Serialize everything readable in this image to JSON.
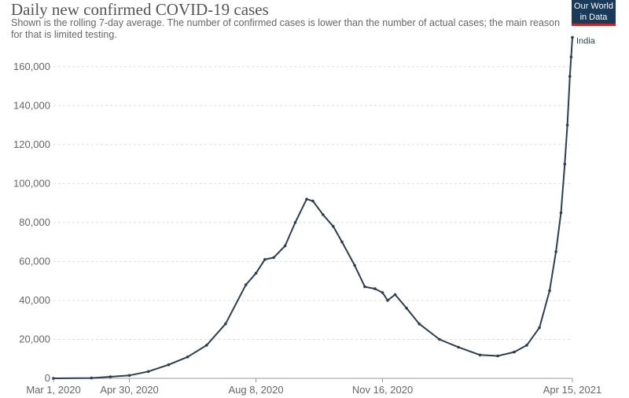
{
  "header": {
    "title": "Daily new confirmed COVID-19 cases",
    "subtitle": "Shown is the rolling 7-day average. The number of confirmed cases is lower than the number of actual cases; the main reason for that is limited testing.",
    "logo_line1": "Our World",
    "logo_line2": "in Data"
  },
  "colors": {
    "series": "#2c3e50",
    "grid": "#dddddd",
    "text": "#666666",
    "logo_bg": "#1a3a5c",
    "logo_accent": "#c0282d"
  },
  "chart_data": {
    "type": "line",
    "title": "Daily new confirmed COVID-19 cases",
    "xlabel": "",
    "ylabel": "",
    "ylim": [
      0,
      170000
    ],
    "xlim": [
      "2020-03-01",
      "2021-04-15"
    ],
    "yticks": [
      0,
      20000,
      40000,
      60000,
      80000,
      100000,
      120000,
      140000,
      160000
    ],
    "ytick_labels": [
      "0",
      "20,000",
      "40,000",
      "60,000",
      "80,000",
      "100,000",
      "120,000",
      "140,000",
      "160,000"
    ],
    "xticks": [
      "2020-03-01",
      "2020-04-30",
      "2020-08-08",
      "2020-11-16",
      "2021-04-15"
    ],
    "xtick_labels": [
      "Mar 1, 2020",
      "Apr 30, 2020",
      "Aug 8, 2020",
      "Nov 16, 2020",
      "Apr 15, 2021"
    ],
    "grid": "horizontal dashed",
    "series": [
      {
        "name": "India",
        "color": "#2c3e50",
        "points": [
          [
            "2020-03-01",
            0
          ],
          [
            "2020-03-31",
            150
          ],
          [
            "2020-04-15",
            800
          ],
          [
            "2020-04-30",
            1500
          ],
          [
            "2020-05-15",
            3500
          ],
          [
            "2020-05-31",
            7000
          ],
          [
            "2020-06-15",
            11000
          ],
          [
            "2020-06-30",
            17000
          ],
          [
            "2020-07-15",
            28000
          ],
          [
            "2020-07-31",
            48000
          ],
          [
            "2020-08-08",
            54000
          ],
          [
            "2020-08-15",
            61000
          ],
          [
            "2020-08-22",
            62000
          ],
          [
            "2020-08-31",
            68000
          ],
          [
            "2020-09-08",
            80000
          ],
          [
            "2020-09-17",
            92000
          ],
          [
            "2020-09-22",
            91000
          ],
          [
            "2020-09-30",
            84000
          ],
          [
            "2020-10-08",
            78000
          ],
          [
            "2020-10-15",
            70000
          ],
          [
            "2020-10-25",
            58000
          ],
          [
            "2020-11-02",
            47000
          ],
          [
            "2020-11-10",
            46000
          ],
          [
            "2020-11-16",
            44000
          ],
          [
            "2020-11-20",
            40000
          ],
          [
            "2020-11-26",
            43000
          ],
          [
            "2020-12-05",
            36000
          ],
          [
            "2020-12-15",
            28000
          ],
          [
            "2020-12-31",
            20000
          ],
          [
            "2021-01-15",
            16000
          ],
          [
            "2021-02-01",
            12000
          ],
          [
            "2021-02-15",
            11500
          ],
          [
            "2021-02-28",
            13500
          ],
          [
            "2021-03-10",
            17000
          ],
          [
            "2021-03-20",
            26000
          ],
          [
            "2021-03-28",
            45000
          ],
          [
            "2021-04-02",
            65000
          ],
          [
            "2021-04-06",
            85000
          ],
          [
            "2021-04-09",
            110000
          ],
          [
            "2021-04-11",
            130000
          ],
          [
            "2021-04-13",
            155000
          ],
          [
            "2021-04-14",
            165000
          ],
          [
            "2021-04-15",
            175000
          ]
        ]
      }
    ]
  }
}
